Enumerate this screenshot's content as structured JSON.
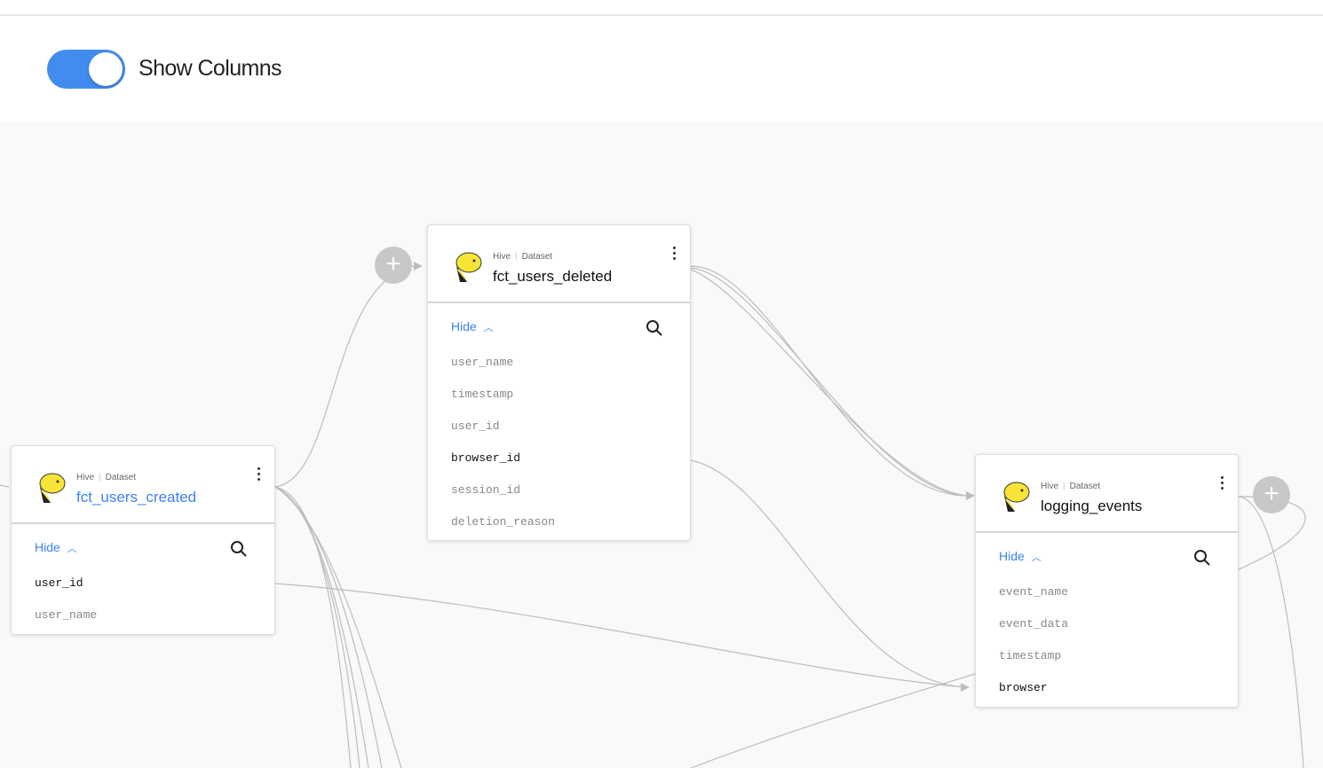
{
  "toolbar": {
    "show_columns_label": "Show Columns",
    "show_columns_on": true
  },
  "colors": {
    "accent": "#428cf0",
    "edge": "#bdbdbd",
    "canvas": "#f9f9f9"
  },
  "nodes": [
    {
      "platform": "Hive",
      "type": "Dataset",
      "name": "fct_users_created",
      "hide_label": "Hide",
      "icon": "hive-bee-icon",
      "columns": [
        {
          "name": "user_id",
          "active": true
        },
        {
          "name": "user_name",
          "active": false
        }
      ]
    },
    {
      "platform": "Hive",
      "type": "Dataset",
      "name": "fct_users_deleted",
      "hide_label": "Hide",
      "icon": "hive-bee-icon",
      "columns": [
        {
          "name": "user_name",
          "active": false
        },
        {
          "name": "timestamp",
          "active": false
        },
        {
          "name": "user_id",
          "active": false
        },
        {
          "name": "browser_id",
          "active": true
        },
        {
          "name": "session_id",
          "active": false
        },
        {
          "name": "deletion_reason",
          "active": false
        }
      ]
    },
    {
      "platform": "Hive",
      "type": "Dataset",
      "name": "logging_events",
      "hide_label": "Hide",
      "icon": "hive-bee-icon",
      "columns": [
        {
          "name": "event_name",
          "active": false
        },
        {
          "name": "event_data",
          "active": false
        },
        {
          "name": "timestamp",
          "active": false
        },
        {
          "name": "browser",
          "active": true
        }
      ]
    }
  ]
}
